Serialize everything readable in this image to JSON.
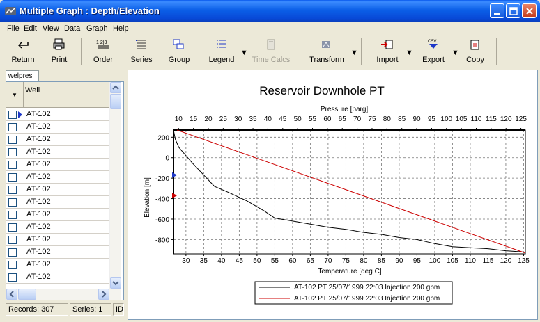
{
  "window": {
    "title": "Multiple Graph : Depth/Elevation"
  },
  "menu": [
    "File",
    "Edit",
    "View",
    "Data",
    "Graph",
    "Help"
  ],
  "toolbar": {
    "return": "Return",
    "print": "Print",
    "order": "Order",
    "series": "Series",
    "group": "Group",
    "legend": "Legend",
    "time_calcs": "Time Calcs",
    "transform": "Transform",
    "import": "Import",
    "export": "Export",
    "copy": "Copy"
  },
  "left_panel": {
    "tab": "welpres",
    "column_header": "Well",
    "rows": [
      "AT-102",
      "AT-102",
      "AT-102",
      "AT-102",
      "AT-102",
      "AT-102",
      "AT-102",
      "AT-102",
      "AT-102",
      "AT-102",
      "AT-102",
      "AT-102",
      "AT-102",
      "AT-102"
    ]
  },
  "status": {
    "records": "Records: 307",
    "series": "Series: 1",
    "extra": "ID"
  },
  "colors": {
    "series_black": "#000000",
    "series_red": "#CC0000",
    "accent_blue": "#0A5BEE"
  },
  "chart_data": {
    "type": "line",
    "title": "Reservoir Downhole PT",
    "top_axis": {
      "label": "Pressure [barg]",
      "range": [
        8.3,
        126.5
      ],
      "ticks": [
        10,
        15,
        20,
        25,
        30,
        35,
        40,
        45,
        50,
        55,
        60,
        65,
        70,
        75,
        80,
        85,
        90,
        95,
        100,
        105,
        110,
        115,
        120,
        125
      ]
    },
    "bottom_axis": {
      "label": "Temperature [deg C]",
      "range": [
        26.5,
        125.5
      ],
      "ticks": [
        30,
        35,
        40,
        45,
        50,
        55,
        60,
        65,
        70,
        75,
        80,
        85,
        90,
        95,
        100,
        105,
        110,
        115,
        120,
        125
      ]
    },
    "y_axis": {
      "label": "Elevation [m]",
      "range": [
        -940,
        270
      ],
      "ticks": [
        200,
        0,
        -200,
        -400,
        -600,
        -800
      ]
    },
    "grid": true,
    "legend_position": "bottom",
    "series": [
      {
        "name": "AT-102 PT 25/07/1999 22:03 Injection 200 gpm",
        "axis": "temperature",
        "color": "#000000",
        "x": [
          26.5,
          27,
          28,
          30,
          32,
          35,
          38,
          42,
          47,
          52,
          55,
          60,
          65,
          70,
          75,
          80,
          85,
          90,
          95,
          100,
          105,
          110,
          115,
          120,
          124.5
        ],
        "y": [
          270,
          180,
          100,
          20,
          -60,
          -170,
          -280,
          -340,
          -420,
          -520,
          -590,
          -620,
          -650,
          -680,
          -700,
          -730,
          -750,
          -780,
          -800,
          -840,
          -870,
          -880,
          -890,
          -910,
          -920
        ]
      },
      {
        "name": "AT-102 PT 25/07/1999 22:03 Injection 200 gpm",
        "axis": "pressure",
        "color": "#CC0000",
        "x": [
          9.5,
          126.3
        ],
        "y": [
          270,
          -930
        ]
      }
    ],
    "markers": [
      {
        "y": -170,
        "color": "#1E38C8"
      },
      {
        "y": -370,
        "color": "#CC0000"
      }
    ]
  }
}
